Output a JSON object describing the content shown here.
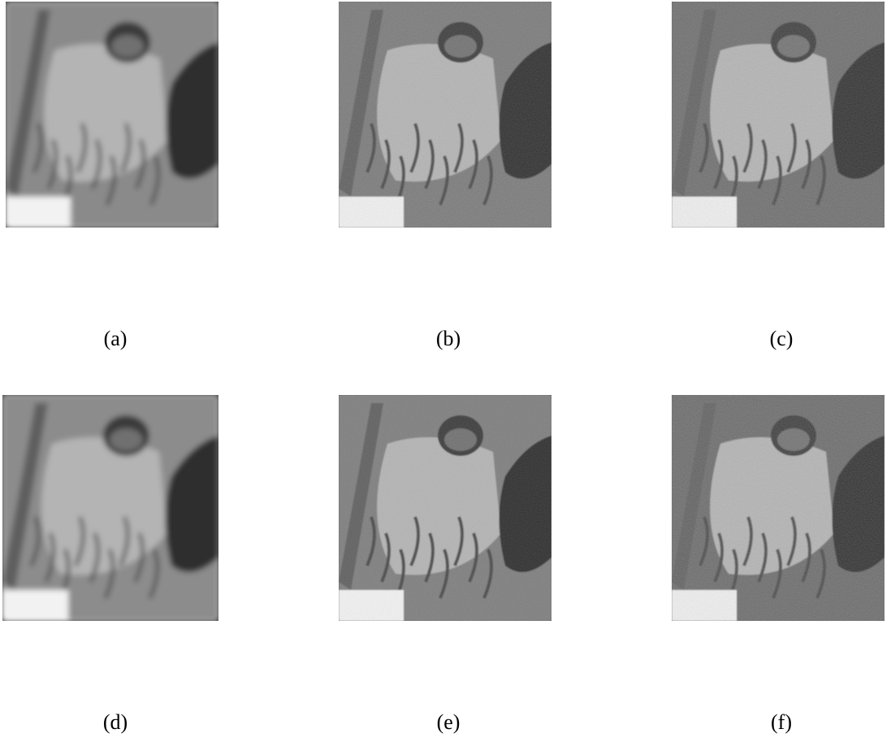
{
  "panels": [
    {
      "id": "a",
      "caption": "(a)",
      "style": "blur-smooth"
    },
    {
      "id": "b",
      "caption": "(b)",
      "style": "noisy-medium"
    },
    {
      "id": "c",
      "caption": "(c)",
      "style": "noisy-dark"
    },
    {
      "id": "d",
      "caption": "(d)",
      "style": "blur-edge"
    },
    {
      "id": "e",
      "caption": "(e)",
      "style": "noisy-light"
    },
    {
      "id": "f",
      "caption": "(f)",
      "style": "noisy-dark"
    }
  ],
  "colors": {
    "background": "#ffffff",
    "caption": "#000000"
  }
}
